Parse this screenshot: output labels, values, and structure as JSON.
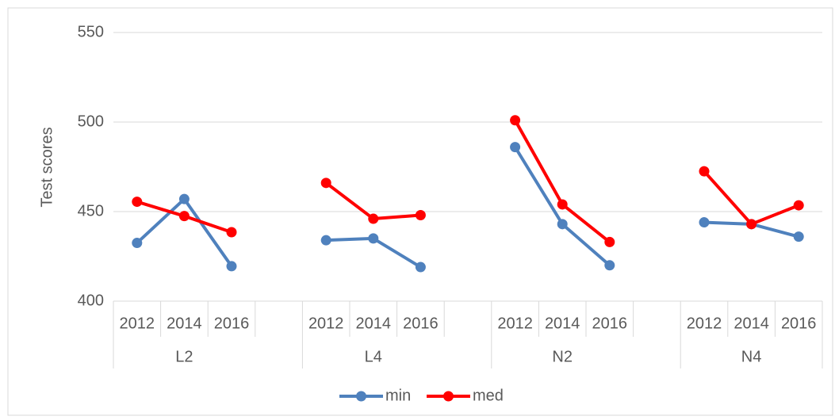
{
  "chart_data": {
    "type": "line",
    "y_label": "Test scores",
    "categories": [
      "2012",
      "2014",
      "2016",
      null,
      "2012",
      "2014",
      "2016",
      null,
      "2012",
      "2014",
      "2016",
      null,
      "2012",
      "2014",
      "2016"
    ],
    "groups": [
      "L2",
      "L4",
      "N2",
      "N4"
    ],
    "series": [
      {
        "name": "min",
        "color": "#4f81bd",
        "values": [
          432.5,
          457,
          419.5,
          null,
          434,
          435,
          419,
          null,
          486,
          443,
          420,
          null,
          444,
          443,
          436
        ]
      },
      {
        "name": "med",
        "color": "#ff0000",
        "values": [
          455.5,
          447.5,
          438.5,
          null,
          466,
          446,
          448,
          null,
          501,
          454,
          433,
          null,
          472.5,
          443,
          453.5
        ]
      }
    ],
    "ylim": [
      400,
      550
    ],
    "yticks": [
      400,
      450,
      500,
      550
    ],
    "grid": true,
    "legend": "bottom"
  }
}
